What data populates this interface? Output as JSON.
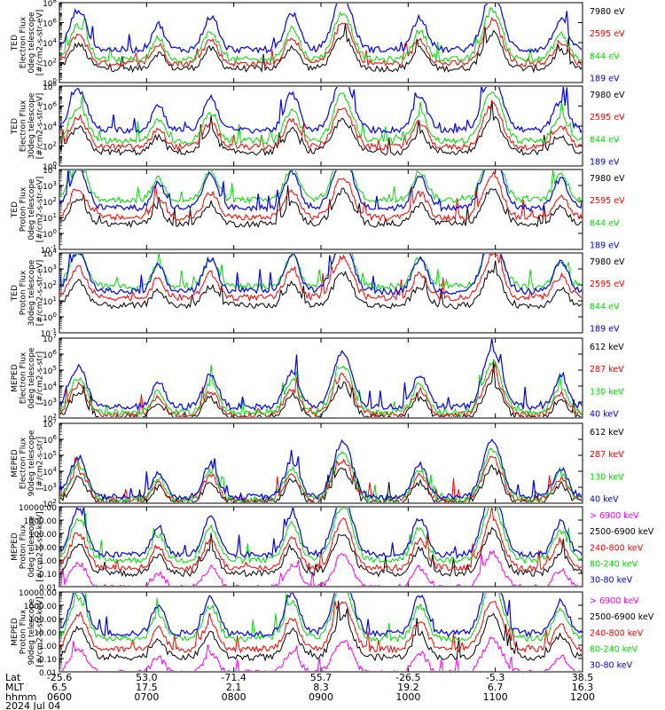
{
  "colors": {
    "black": "#000000",
    "red": "#ff0000",
    "green": "#00dd00",
    "blue": "#0000ff",
    "magenta": "#ff00ff"
  },
  "chart_data": [
    {
      "type": "line",
      "ylabel_lines": [
        "TED",
        "Electron Flux",
        "0deg telescope",
        "[#/cm2-s-str-eV]"
      ],
      "yscale": "log",
      "ylim_exp": [
        0,
        8
      ],
      "ytick_exps": [
        0,
        2,
        4,
        6,
        8
      ],
      "ytick_format": "pow",
      "series": [
        {
          "name": "7980 eV",
          "color": "black",
          "level": 1.4
        },
        {
          "name": "2595 eV",
          "color": "red",
          "level": 1.9
        },
        {
          "name": "844 eV",
          "color": "green",
          "level": 2.3
        },
        {
          "name": "189 eV",
          "color": "blue",
          "level": 3.3
        }
      ]
    },
    {
      "type": "line",
      "ylabel_lines": [
        "TED",
        "Electron Flux",
        "30deg telescope",
        "[#/cm2-s-str-eV]"
      ],
      "yscale": "log",
      "ylim_exp": [
        0,
        8
      ],
      "ytick_exps": [
        0,
        2,
        4,
        6,
        8
      ],
      "ytick_format": "pow",
      "series": [
        {
          "name": "7980 eV",
          "color": "black",
          "level": 1.4
        },
        {
          "name": "2595 eV",
          "color": "red",
          "level": 1.9
        },
        {
          "name": "844 eV",
          "color": "green",
          "level": 2.5
        },
        {
          "name": "189 eV",
          "color": "blue",
          "level": 3.6
        }
      ]
    },
    {
      "type": "line",
      "ylabel_lines": [
        "TED",
        "Proton Flux",
        "0deg telescope",
        "[#/cm2-s-str-eV]"
      ],
      "yscale": "log",
      "ylim_exp": [
        -1,
        4
      ],
      "ytick_exps": [
        -1,
        0,
        1,
        2,
        3,
        4
      ],
      "ytick_format": "pow",
      "series": [
        {
          "name": "7980 eV",
          "color": "black",
          "level": 0.6
        },
        {
          "name": "2595 eV",
          "color": "red",
          "level": 1.0
        },
        {
          "name": "844 eV",
          "color": "green",
          "level": 2.1
        },
        {
          "name": "189 eV",
          "color": "blue",
          "level": 1.6
        }
      ]
    },
    {
      "type": "line",
      "ylabel_lines": [
        "TED",
        "Proton Flux",
        "30deg telescope",
        "[#/cm2-s-str-eV]"
      ],
      "yscale": "log",
      "ylim_exp": [
        -1,
        4
      ],
      "ytick_exps": [
        -1,
        0,
        1,
        2,
        3,
        4
      ],
      "ytick_format": "pow",
      "series": [
        {
          "name": "7980 eV",
          "color": "black",
          "level": 0.7
        },
        {
          "name": "2595 eV",
          "color": "red",
          "level": 1.2
        },
        {
          "name": "844 eV",
          "color": "green",
          "level": 1.9
        },
        {
          "name": "189 eV",
          "color": "blue",
          "level": 1.6
        }
      ]
    },
    {
      "type": "line",
      "ylabel_lines": [
        "MEPED",
        "Electron Flux",
        "0deg telescope",
        "[#/cm2-s-str]"
      ],
      "yscale": "log",
      "ylim_exp": [
        2,
        7
      ],
      "ytick_exps": [
        2,
        3,
        4,
        5,
        6,
        7
      ],
      "ytick_format": "pow",
      "series": [
        {
          "name": "612 keV",
          "color": "black",
          "level": 2.05
        },
        {
          "name": "287 keV",
          "color": "red",
          "level": 2.2
        },
        {
          "name": "130 keV",
          "color": "green",
          "level": 2.35
        },
        {
          "name": "40 keV",
          "color": "blue",
          "level": 2.7
        }
      ]
    },
    {
      "type": "line",
      "ylabel_lines": [
        "MEPED",
        "Electron Flux",
        "90deg telescope",
        "[#/cm2-s-str]"
      ],
      "yscale": "log",
      "ylim_exp": [
        2,
        7
      ],
      "ytick_exps": [
        2,
        3,
        4,
        5,
        6,
        7
      ],
      "ytick_format": "pow",
      "series": [
        {
          "name": "612 keV",
          "color": "black",
          "level": 2.05
        },
        {
          "name": "287 keV",
          "color": "red",
          "level": 2.2
        },
        {
          "name": "130 keV",
          "color": "green",
          "level": 2.25
        },
        {
          "name": "40 keV",
          "color": "blue",
          "level": 2.4
        }
      ]
    },
    {
      "type": "line",
      "ylabel_lines": [
        "MEPED",
        "Proton Flux",
        "0deg telescope",
        "[#/cm2-s-str-keV]"
      ],
      "yscale": "log",
      "ylim_exp": [
        -2,
        4
      ],
      "ytick_exps": [
        -2,
        -1,
        0,
        1,
        2,
        3,
        4
      ],
      "ytick_format": "dec",
      "series": [
        {
          "name": "> 6900 keV",
          "color": "magenta",
          "level": -2.1
        },
        {
          "name": "2500-6900 keV",
          "color": "black",
          "level": -1.0
        },
        {
          "name": "240-800 keV",
          "color": "red",
          "level": -0.6
        },
        {
          "name": "80-240 keV",
          "color": "green",
          "level": 0.0
        },
        {
          "name": "30-80 keV",
          "color": "blue",
          "level": 0.4
        }
      ]
    },
    {
      "type": "line",
      "ylabel_lines": [
        "MEPED",
        "Proton Flux",
        "90deg telescope",
        "[#/cm2-s-str-keV]"
      ],
      "yscale": "log",
      "ylim_exp": [
        -2,
        4
      ],
      "ytick_exps": [
        -2,
        -1,
        0,
        1,
        2,
        3,
        4
      ],
      "ytick_format": "dec",
      "series": [
        {
          "name": "> 6900 keV",
          "color": "magenta",
          "level": -2.1
        },
        {
          "name": "2500-6900 keV",
          "color": "black",
          "level": -0.9
        },
        {
          "name": "240-800 keV",
          "color": "red",
          "level": -0.3
        },
        {
          "name": "80-240 keV",
          "color": "green",
          "level": 0.5
        },
        {
          "name": "30-80 keV",
          "color": "blue",
          "level": 0.9
        }
      ]
    }
  ],
  "x_axis": {
    "xlim_minutes": [
      360,
      720
    ],
    "tick_minutes": [
      360,
      420,
      480,
      540,
      600,
      660,
      720
    ],
    "row_labels": [
      "Lat",
      "MLT",
      "hhmm"
    ],
    "lat": [
      "-25.6",
      "53.0",
      "-71.4",
      "55.7",
      "-26.5",
      "-5.3",
      "38.5"
    ],
    "mlt": [
      "6.5",
      "17.5",
      "2.1",
      "8.3",
      "19.2",
      "6.7",
      "16.3"
    ],
    "hhmm": [
      "0600",
      "0700",
      "0800",
      "0900",
      "1000",
      "1100",
      "1200"
    ],
    "date": "2024 Jul 04"
  },
  "passes": [
    {
      "center_minute": 373,
      "width": 8,
      "peak": 0.55
    },
    {
      "center_minute": 428,
      "width": 6,
      "peak": 0.35
    },
    {
      "center_minute": 464,
      "width": 7,
      "peak": 0.45
    },
    {
      "center_minute": 520,
      "width": 7,
      "peak": 0.5
    },
    {
      "center_minute": 555,
      "width": 9,
      "peak": 0.75
    },
    {
      "center_minute": 608,
      "width": 7,
      "peak": 0.45
    },
    {
      "center_minute": 658,
      "width": 9,
      "peak": 0.8
    },
    {
      "center_minute": 705,
      "width": 7,
      "peak": 0.4
    }
  ]
}
